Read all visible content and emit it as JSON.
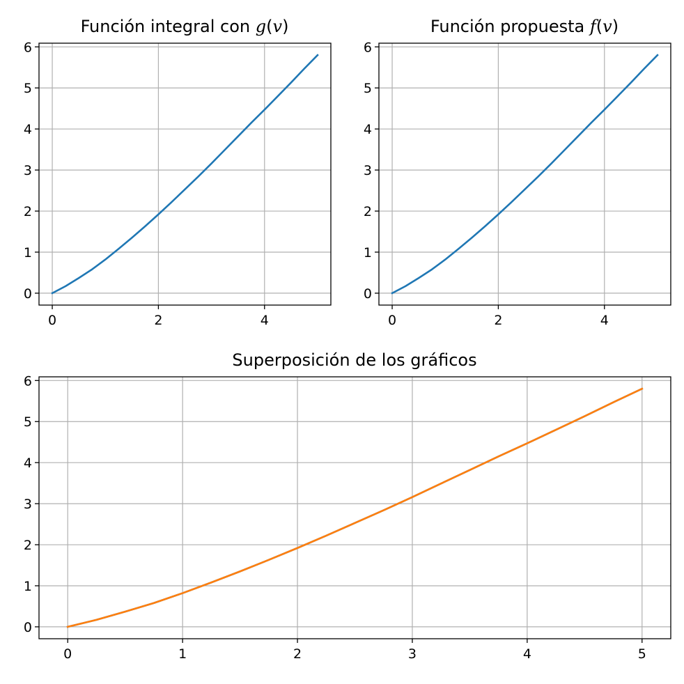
{
  "chart_data": [
    {
      "type": "line",
      "title_prefix": "Función integral con ",
      "title_func": "g",
      "title_arg": "v",
      "title_open": "(",
      "title_close": ")",
      "xlabel": "",
      "ylabel": "",
      "xlim": [
        -0.25,
        5.25
      ],
      "ylim": [
        -0.29,
        6.09
      ],
      "xticks": [
        0,
        2,
        4
      ],
      "xtick_labels": [
        "0",
        "2",
        "4"
      ],
      "yticks": [
        0,
        1,
        2,
        3,
        4,
        5,
        6
      ],
      "ytick_labels": [
        "0",
        "1",
        "2",
        "3",
        "4",
        "5",
        "6"
      ],
      "grid": true,
      "series": [
        {
          "color": "#1f77b4",
          "x": [
            0,
            0.25,
            0.5,
            0.75,
            1,
            1.25,
            1.5,
            1.75,
            2,
            2.25,
            2.5,
            2.75,
            3,
            3.25,
            3.5,
            3.75,
            4,
            4.25,
            4.5,
            4.75,
            5
          ],
          "y": [
            0,
            0.17,
            0.37,
            0.58,
            0.82,
            1.08,
            1.35,
            1.63,
            1.92,
            2.22,
            2.53,
            2.84,
            3.16,
            3.49,
            3.82,
            4.15,
            4.47,
            4.8,
            5.13,
            5.47,
            5.8
          ]
        }
      ]
    },
    {
      "type": "line",
      "title_prefix": "Función propuesta ",
      "title_func": "f",
      "title_arg": "v",
      "title_open": "(",
      "title_close": ")",
      "xlabel": "",
      "ylabel": "",
      "xlim": [
        -0.25,
        5.25
      ],
      "ylim": [
        -0.29,
        6.09
      ],
      "xticks": [
        0,
        2,
        4
      ],
      "xtick_labels": [
        "0",
        "2",
        "4"
      ],
      "yticks": [
        0,
        1,
        2,
        3,
        4,
        5,
        6
      ],
      "ytick_labels": [
        "0",
        "1",
        "2",
        "3",
        "4",
        "5",
        "6"
      ],
      "grid": true,
      "series": [
        {
          "color": "#1f77b4",
          "x": [
            0,
            0.25,
            0.5,
            0.75,
            1,
            1.25,
            1.5,
            1.75,
            2,
            2.25,
            2.5,
            2.75,
            3,
            3.25,
            3.5,
            3.75,
            4,
            4.25,
            4.5,
            4.75,
            5
          ],
          "y": [
            0,
            0.17,
            0.37,
            0.58,
            0.82,
            1.08,
            1.35,
            1.63,
            1.92,
            2.22,
            2.53,
            2.84,
            3.16,
            3.49,
            3.82,
            4.15,
            4.47,
            4.8,
            5.13,
            5.47,
            5.8
          ]
        }
      ]
    },
    {
      "type": "line",
      "title": "Superposición de los gráficos",
      "xlabel": "",
      "ylabel": "",
      "xlim": [
        -0.25,
        5.25
      ],
      "ylim": [
        -0.29,
        6.09
      ],
      "xticks": [
        0,
        1,
        2,
        3,
        4,
        5
      ],
      "xtick_labels": [
        "0",
        "1",
        "2",
        "3",
        "4",
        "5"
      ],
      "yticks": [
        0,
        1,
        2,
        3,
        4,
        5,
        6
      ],
      "ytick_labels": [
        "0",
        "1",
        "2",
        "3",
        "4",
        "5",
        "6"
      ],
      "grid": true,
      "series": [
        {
          "color": "#1f77b4",
          "x": [
            0,
            0.25,
            0.5,
            0.75,
            1,
            1.25,
            1.5,
            1.75,
            2,
            2.25,
            2.5,
            2.75,
            3,
            3.25,
            3.5,
            3.75,
            4,
            4.25,
            4.5,
            4.75,
            5
          ],
          "y": [
            0,
            0.17,
            0.37,
            0.58,
            0.82,
            1.08,
            1.35,
            1.63,
            1.92,
            2.22,
            2.53,
            2.84,
            3.16,
            3.49,
            3.82,
            4.15,
            4.47,
            4.8,
            5.13,
            5.47,
            5.8
          ]
        },
        {
          "color": "#ff7f0e",
          "x": [
            0,
            0.25,
            0.5,
            0.75,
            1,
            1.25,
            1.5,
            1.75,
            2,
            2.25,
            2.5,
            2.75,
            3,
            3.25,
            3.5,
            3.75,
            4,
            4.25,
            4.5,
            4.75,
            5
          ],
          "y": [
            0,
            0.17,
            0.37,
            0.58,
            0.82,
            1.08,
            1.35,
            1.63,
            1.92,
            2.22,
            2.53,
            2.84,
            3.16,
            3.49,
            3.82,
            4.15,
            4.47,
            4.8,
            5.13,
            5.47,
            5.8
          ]
        }
      ]
    }
  ]
}
